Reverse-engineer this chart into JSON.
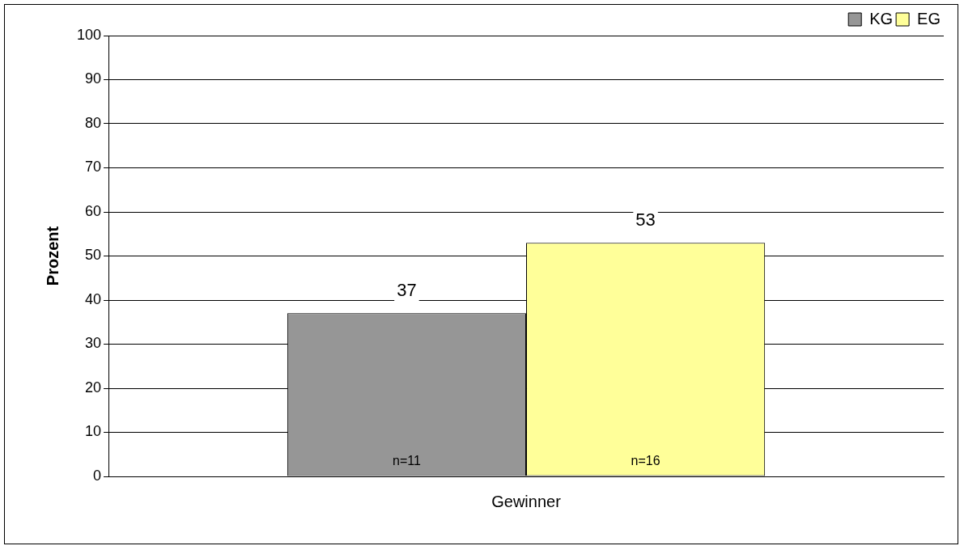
{
  "chart_data": {
    "type": "bar",
    "ylabel": "Prozent",
    "categories": [
      "Gewinner"
    ],
    "series": [
      {
        "name": "KG",
        "color": "#969696",
        "values": [
          37
        ]
      },
      {
        "name": "EG",
        "color": "#ffff99",
        "values": [
          53
        ]
      }
    ],
    "ylim": [
      0,
      100
    ],
    "yticks": [
      0,
      10,
      20,
      30,
      40,
      50,
      60,
      70,
      80,
      90,
      100
    ],
    "grid": "y",
    "legend": "top right",
    "data_labels": true,
    "annotations": [
      "n=11",
      "n=16"
    ]
  }
}
